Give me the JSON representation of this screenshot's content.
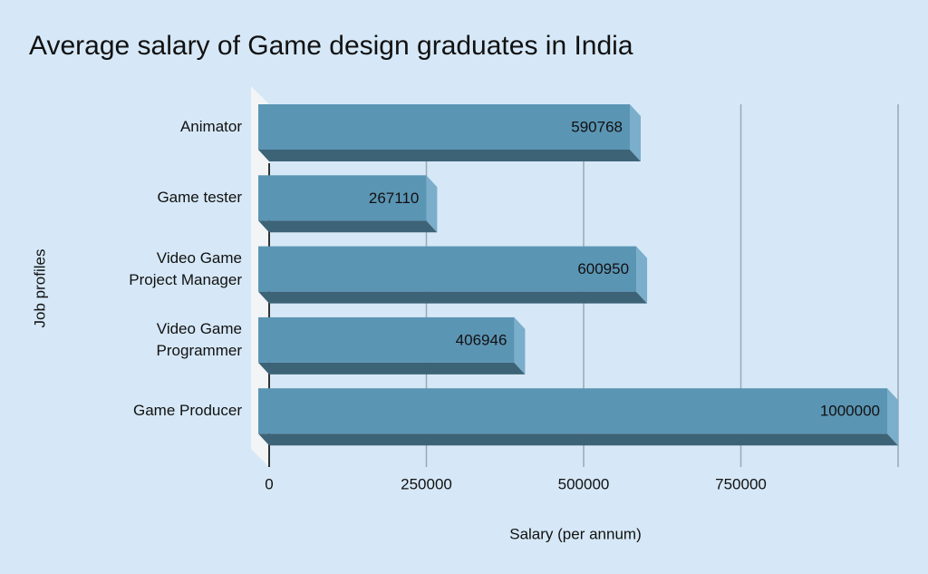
{
  "chart_data": {
    "type": "bar3d-horizontal",
    "title": "Average salary of Game design graduates in India",
    "x_label": "Salary (per annum)",
    "y_label": "Job profiles",
    "categories": [
      "Animator",
      "Game tester",
      "Video Game\nProject Manager",
      "Video Game\nProgrammer",
      "Game Producer"
    ],
    "values": [
      590768,
      267110,
      600950,
      406946,
      1000000
    ],
    "color": "#5b95b4",
    "xlim": [
      0,
      1000000
    ],
    "xticks": [
      0,
      250000,
      500000,
      750000
    ],
    "grid": true
  }
}
